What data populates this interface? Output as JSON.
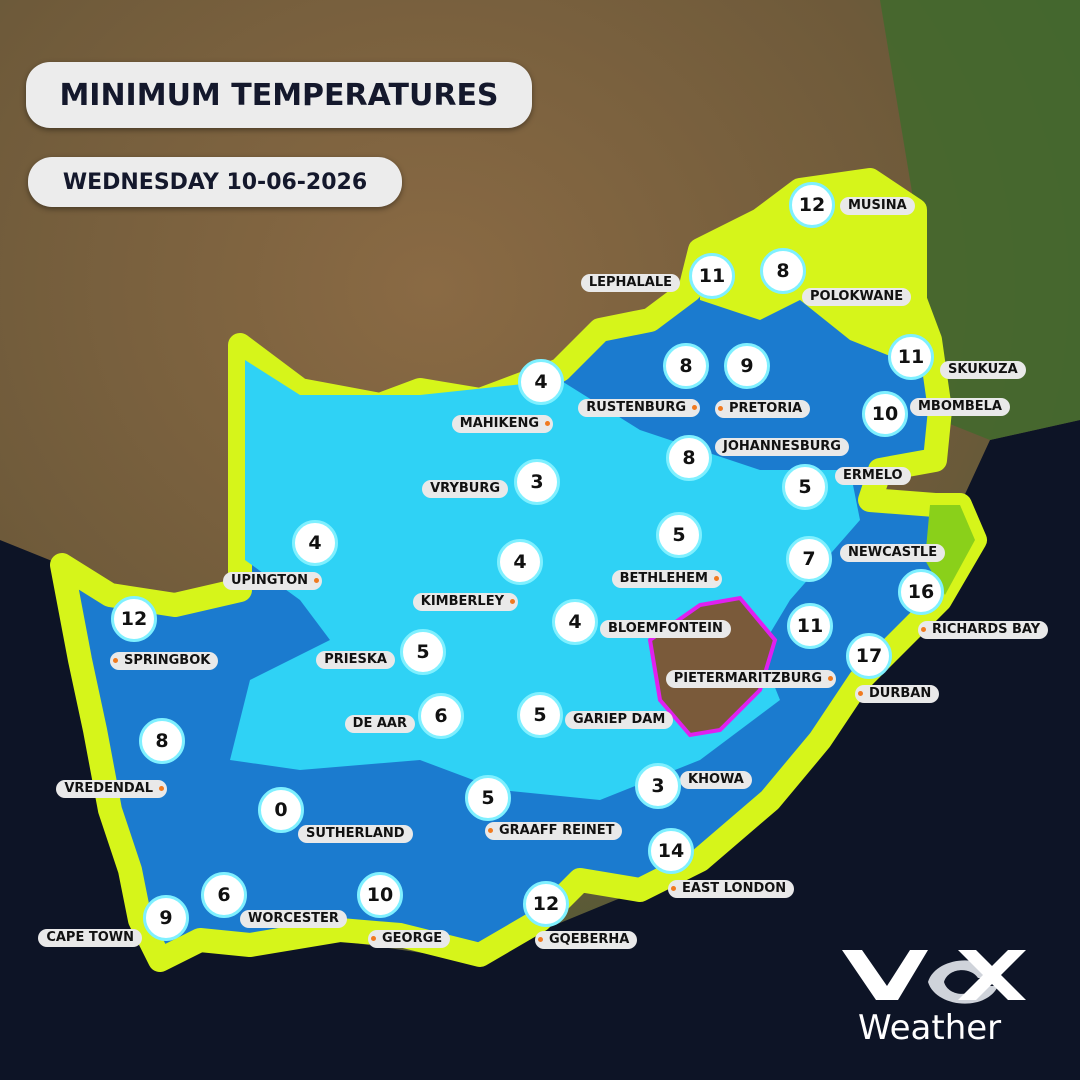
{
  "header": {
    "title": "MINIMUM TEMPERATURES",
    "date": "WEDNESDAY 10-06-2026"
  },
  "cities": [
    {
      "name": "MUSINA",
      "min_temp": 12
    },
    {
      "name": "LEPHALALE",
      "min_temp": 11
    },
    {
      "name": "POLOKWANE",
      "min_temp": 8
    },
    {
      "name": "SKUKUZA",
      "min_temp": 11
    },
    {
      "name": "MBOMBELA",
      "min_temp": 10
    },
    {
      "name": "PRETORIA",
      "min_temp": 9
    },
    {
      "name": "RUSTENBURG",
      "min_temp": 8
    },
    {
      "name": "MAHIKENG",
      "min_temp": 4
    },
    {
      "name": "JOHANNESBURG",
      "min_temp": 8
    },
    {
      "name": "ERMELO",
      "min_temp": 5
    },
    {
      "name": "VRYBURG",
      "min_temp": 3
    },
    {
      "name": "BETHLEHEM",
      "min_temp": 5
    },
    {
      "name": "NEWCASTLE",
      "min_temp": 7
    },
    {
      "name": "RICHARDS BAY",
      "min_temp": 16
    },
    {
      "name": "UPINGTON",
      "min_temp": 4
    },
    {
      "name": "KIMBERLEY",
      "min_temp": 4
    },
    {
      "name": "BLOEMFONTEIN",
      "min_temp": 4
    },
    {
      "name": "PIETERMARITZBURG",
      "min_temp": 11
    },
    {
      "name": "DURBAN",
      "min_temp": 17
    },
    {
      "name": "SPRINGBOK",
      "min_temp": 12
    },
    {
      "name": "PRIESKA",
      "min_temp": 5
    },
    {
      "name": "DE AAR",
      "min_temp": 6
    },
    {
      "name": "GARIEP DAM",
      "min_temp": 5
    },
    {
      "name": "VREDENDAL",
      "min_temp": 8
    },
    {
      "name": "KHOWA",
      "min_temp": 3
    },
    {
      "name": "SUTHERLAND",
      "min_temp": 0
    },
    {
      "name": "GRAAFF REINET",
      "min_temp": 5
    },
    {
      "name": "EAST LONDON",
      "min_temp": 14
    },
    {
      "name": "WORCESTER",
      "min_temp": 6
    },
    {
      "name": "GEORGE",
      "min_temp": 10
    },
    {
      "name": "CAPE TOWN",
      "min_temp": 9
    },
    {
      "name": "GQEBERHA",
      "min_temp": 12
    }
  ],
  "brand": {
    "name": "Weather"
  }
}
